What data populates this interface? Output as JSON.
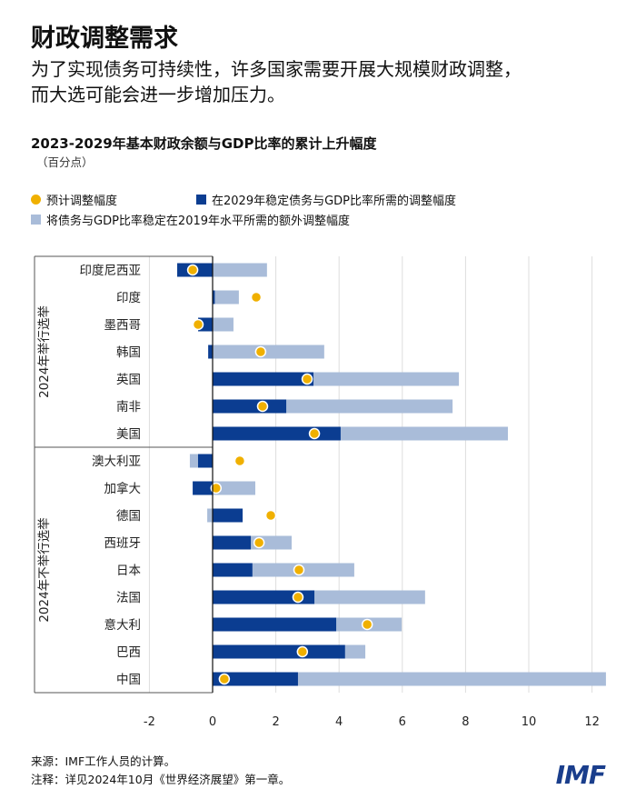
{
  "title": "财政调整需求",
  "subtitle": [
    "为了实现债务可持续性，许多国家需要开展大规模财政调整，",
    "而大选可能会进一步增加压力。"
  ],
  "source": "来源：IMF工作人员的计算。",
  "note": "注释：详见2024年10月《世界经济展望》第一章。",
  "logo": "IMF",
  "chart_data": {
    "type": "bar",
    "orientation": "horizontal",
    "stacked": true,
    "title": "2023-2029年基本财政余额与GDP比率的累计上升幅度",
    "unit": "（百分点）",
    "xlim": [
      -2,
      12.5
    ],
    "xticks": [
      "-2",
      "0",
      "2",
      "4",
      "6",
      "8",
      "10",
      "12"
    ],
    "grid": true,
    "legend_position": "top",
    "colors": {
      "projected": "#f0b000",
      "stabilize": "#0b3d91",
      "additional": "#a9bcd9"
    },
    "groups": [
      {
        "label": "2024年举行选举",
        "count": 7
      },
      {
        "label": "2024年不举行选举",
        "count": 9
      }
    ],
    "categories": [
      "印度尼西亚",
      "印度",
      "墨西哥",
      "韩国",
      "英国",
      "南非",
      "美国",
      "澳大利亚",
      "加拿大",
      "德国",
      "西班牙",
      "日本",
      "法国",
      "意大利",
      "巴西",
      "中国"
    ],
    "series": [
      {
        "name": "预计调整幅度",
        "kind": "dot",
        "values": [
          -0.63,
          1.38,
          -0.46,
          1.52,
          2.99,
          1.58,
          3.22,
          0.86,
          0.11,
          1.84,
          1.47,
          2.73,
          2.7,
          4.89,
          2.84,
          0.37
        ]
      },
      {
        "name": "在2029年稳定债务与GDP比率所需的调整幅度",
        "kind": "bar",
        "values": [
          -1.12,
          0.07,
          -0.46,
          -0.14,
          3.19,
          2.33,
          4.05,
          -0.46,
          -0.63,
          0.95,
          1.21,
          1.26,
          3.22,
          3.91,
          4.19,
          2.7
        ]
      },
      {
        "name": "将债务与GDP比率稳定在2019年水平所需的额外调整幅度",
        "kind": "bar",
        "values": [
          1.72,
          0.76,
          0.66,
          3.53,
          4.6,
          5.26,
          5.29,
          -0.26,
          1.35,
          -0.17,
          1.29,
          3.22,
          3.5,
          2.07,
          0.64,
          9.74
        ]
      }
    ]
  }
}
